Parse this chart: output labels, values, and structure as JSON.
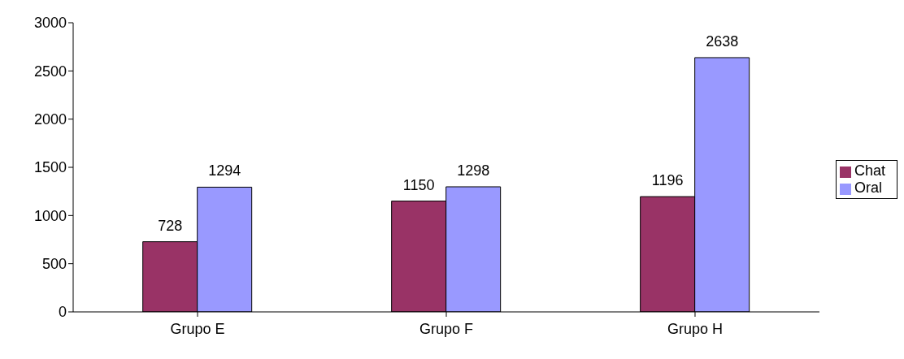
{
  "chart_data": {
    "type": "bar",
    "categories": [
      "Grupo E",
      "Grupo F",
      "Grupo H"
    ],
    "series": [
      {
        "name": "Chat",
        "color": "#993366",
        "values": [
          728,
          1150,
          1196
        ]
      },
      {
        "name": "Oral",
        "color": "#9999ff",
        "values": [
          1294,
          1298,
          2638
        ]
      }
    ],
    "ylim": [
      0,
      3000
    ],
    "yticks": [
      0,
      500,
      1000,
      1500,
      2000,
      2500,
      3000
    ],
    "grid": false,
    "legend": "right",
    "data_labels": true
  }
}
